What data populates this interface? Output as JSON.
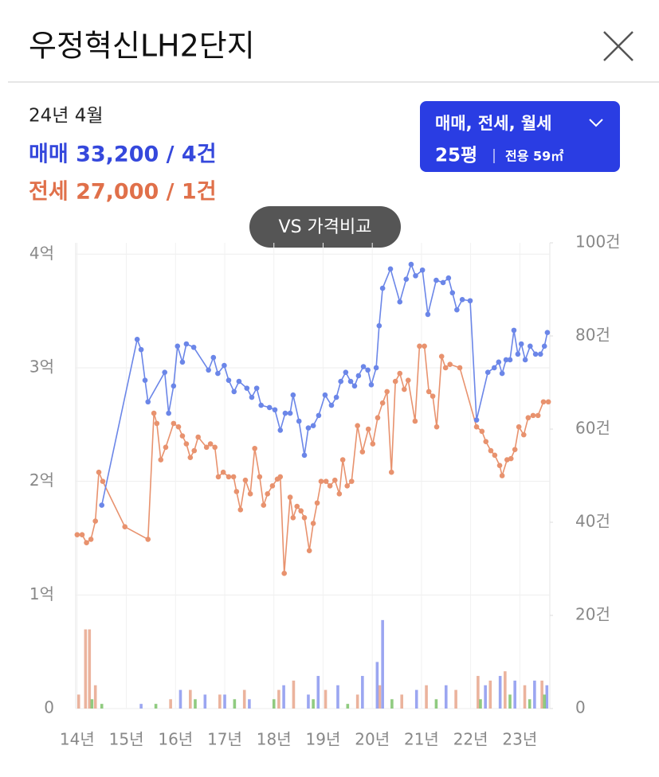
{
  "header": {
    "title": "우정혁신LH2단지",
    "date": "24년 4월",
    "sale": "매매 33,200 / 4건",
    "jeonse": "전세 27,000 / 1건",
    "filter": "매매, 전세, 월세",
    "size": "25평",
    "area": "전용 59㎡",
    "compare": "VS 가격비교"
  },
  "chart_data": {
    "type": "line",
    "xlim": [
      2013.97,
      2023.61
    ],
    "xticks": [
      {
        "value": 2014,
        "label": "14년"
      },
      {
        "value": 2015,
        "label": "15년"
      },
      {
        "value": 2016,
        "label": "16년"
      },
      {
        "value": 2017,
        "label": "17년"
      },
      {
        "value": 2018,
        "label": "18년"
      },
      {
        "value": 2019,
        "label": "19년"
      },
      {
        "value": 2020,
        "label": "20년"
      },
      {
        "value": 2021,
        "label": "21년"
      },
      {
        "value": 2022,
        "label": "22년"
      },
      {
        "value": 2023,
        "label": "23년"
      }
    ],
    "ylim": [
      0,
      4.1
    ],
    "yticks": [
      0,
      {
        "value": 1,
        "label": "1억"
      },
      {
        "value": 2,
        "label": "2억"
      },
      {
        "value": 3,
        "label": "3억"
      },
      {
        "value": 4,
        "label": "4억"
      }
    ],
    "y2lim": [
      0,
      100
    ],
    "y2ticks": [
      0,
      {
        "value": 20,
        "label": "20건"
      },
      {
        "value": 40,
        "label": "40건"
      },
      {
        "value": 60,
        "label": "60건"
      },
      {
        "value": 80,
        "label": "80건"
      },
      {
        "value": 100,
        "label": "100건"
      }
    ],
    "grid": true,
    "series": [
      {
        "kind": "bar",
        "axis": "y2",
        "color": "#e8a68c",
        "x": [
          2014.03,
          2014.17,
          2014.25,
          2014.37,
          2015.9,
          2016.3,
          2016.9,
          2017.4,
          2018.1,
          2018.4,
          2019.05,
          2019.7,
          2020.15,
          2020.6,
          2021.1,
          2021.7,
          2022.15,
          2022.4,
          2022.7,
          2023.1,
          2023.45
        ],
        "values": [
          3,
          17,
          17,
          5,
          2,
          4,
          3,
          4,
          4,
          6,
          4,
          3,
          5,
          3,
          5,
          4,
          7,
          6,
          8,
          5,
          6
        ]
      },
      {
        "kind": "bar",
        "axis": "y2",
        "color": "#8a97ee",
        "x": [
          2015.3,
          2016.1,
          2016.6,
          2017.0,
          2017.5,
          2018.2,
          2018.7,
          2018.9,
          2019.3,
          2019.8,
          2020.1,
          2020.21,
          2020.9,
          2021.5,
          2022.3,
          2022.6,
          2022.9,
          2023.3,
          2023.55
        ],
        "values": [
          1,
          4,
          3,
          3,
          2,
          5,
          3,
          7,
          5,
          7,
          10,
          19,
          4,
          5,
          5,
          7,
          6,
          6,
          5
        ]
      },
      {
        "kind": "bar",
        "axis": "y2",
        "color": "#7cc26a",
        "x": [
          2014.3,
          2014.5,
          2015.6,
          2016.4,
          2017.2,
          2018.0,
          2018.8,
          2019.5,
          2020.4,
          2021.3,
          2022.2,
          2022.8,
          2023.2,
          2023.5
        ],
        "values": [
          2,
          1,
          1,
          2,
          2,
          2,
          2,
          1,
          2,
          2,
          2,
          3,
          2,
          3
        ]
      },
      {
        "kind": "line",
        "color": "#e8926e",
        "x": [
          2014.0,
          2014.1,
          2014.19,
          2014.28,
          2014.37,
          2014.44,
          2014.52,
          2014.97,
          2015.44,
          2015.56,
          2015.62,
          2015.7,
          2015.8,
          2015.96,
          2016.06,
          2016.14,
          2016.22,
          2016.3,
          2016.38,
          2016.46,
          2016.63,
          2016.71,
          2016.8,
          2016.87,
          2016.97,
          2017.08,
          2017.18,
          2017.24,
          2017.32,
          2017.42,
          2017.52,
          2017.61,
          2017.71,
          2017.79,
          2017.87,
          2017.97,
          2018.07,
          2018.13,
          2018.21,
          2018.33,
          2018.39,
          2018.47,
          2018.55,
          2018.62,
          2018.72,
          2018.8,
          2018.88,
          2018.96,
          2019.06,
          2019.14,
          2019.24,
          2019.33,
          2019.4,
          2019.49,
          2019.58,
          2019.7,
          2019.8,
          2019.92,
          2020.01,
          2020.11,
          2020.21,
          2020.3,
          2020.39,
          2020.47,
          2020.56,
          2020.65,
          2020.73,
          2020.87,
          2020.96,
          2021.06,
          2021.15,
          2021.23,
          2021.31,
          2021.41,
          2021.49,
          2021.58,
          2021.78,
          2022.12,
          2022.23,
          2022.31,
          2022.41,
          2022.49,
          2022.59,
          2022.64,
          2022.74,
          2022.82,
          2022.9,
          2022.98,
          2023.08,
          2023.17,
          2023.27,
          2023.37,
          2023.48,
          2023.58
        ],
        "values": [
          1.53,
          1.53,
          1.46,
          1.49,
          1.65,
          2.08,
          2.0,
          1.6,
          1.49,
          2.6,
          2.51,
          2.19,
          2.3,
          2.51,
          2.48,
          2.4,
          2.33,
          2.21,
          2.27,
          2.39,
          2.3,
          2.33,
          2.3,
          2.04,
          2.08,
          2.04,
          2.04,
          1.91,
          1.75,
          2.01,
          1.89,
          2.29,
          2.04,
          1.79,
          1.89,
          1.96,
          2.02,
          2.04,
          1.19,
          1.86,
          1.68,
          1.78,
          1.74,
          1.68,
          1.39,
          1.63,
          1.81,
          2.0,
          2.0,
          1.96,
          2.01,
          1.89,
          2.19,
          1.96,
          2.0,
          2.49,
          2.26,
          2.46,
          2.33,
          2.56,
          2.69,
          2.79,
          2.08,
          2.88,
          2.95,
          2.81,
          2.89,
          2.53,
          3.19,
          3.19,
          2.79,
          2.75,
          2.48,
          3.1,
          3.0,
          3.03,
          3.0,
          2.48,
          2.44,
          2.35,
          2.27,
          2.23,
          2.14,
          2.05,
          2.19,
          2.2,
          2.28,
          2.48,
          2.41,
          2.56,
          2.58,
          2.58,
          2.7,
          2.7
        ]
      },
      {
        "kind": "line",
        "color": "#6b86e8",
        "x": [
          2014.5,
          2015.22,
          2015.3,
          2015.38,
          2015.44,
          2015.78,
          2015.86,
          2015.96,
          2016.04,
          2016.14,
          2016.22,
          2016.37,
          2016.67,
          2016.77,
          2016.86,
          2016.99,
          2017.08,
          2017.19,
          2017.29,
          2017.45,
          2017.55,
          2017.65,
          2017.74,
          2017.91,
          2018.02,
          2018.13,
          2018.23,
          2018.33,
          2018.39,
          2018.51,
          2018.62,
          2018.7,
          2018.8,
          2018.91,
          2019.04,
          2019.17,
          2019.27,
          2019.36,
          2019.46,
          2019.56,
          2019.64,
          2019.72,
          2019.82,
          2019.91,
          2019.98,
          2020.08,
          2020.14,
          2020.21,
          2020.37,
          2020.56,
          2020.69,
          2020.79,
          2020.88,
          2021.02,
          2021.13,
          2021.3,
          2021.44,
          2021.55,
          2021.63,
          2021.72,
          2021.83,
          2021.99,
          2022.12,
          2022.35,
          2022.48,
          2022.57,
          2022.64,
          2022.72,
          2022.8,
          2022.88,
          2022.96,
          2023.03,
          2023.11,
          2023.21,
          2023.32,
          2023.42,
          2023.5,
          2023.56
        ],
        "values": [
          1.79,
          3.25,
          3.16,
          2.89,
          2.7,
          2.96,
          2.6,
          2.84,
          3.19,
          3.05,
          3.21,
          3.18,
          2.98,
          3.09,
          2.95,
          3.02,
          2.89,
          2.79,
          2.88,
          2.82,
          2.74,
          2.82,
          2.67,
          2.65,
          2.63,
          2.45,
          2.6,
          2.6,
          2.76,
          2.53,
          2.23,
          2.47,
          2.49,
          2.58,
          2.76,
          2.67,
          2.74,
          2.88,
          2.96,
          2.88,
          2.84,
          2.93,
          3.01,
          2.98,
          2.85,
          3.0,
          3.37,
          3.7,
          3.87,
          3.58,
          3.78,
          3.91,
          3.81,
          3.86,
          3.47,
          3.77,
          3.75,
          3.79,
          3.66,
          3.51,
          3.6,
          3.59,
          2.54,
          2.96,
          3.0,
          3.05,
          2.95,
          3.07,
          3.07,
          3.33,
          3.12,
          3.21,
          3.07,
          3.19,
          3.12,
          3.12,
          3.19,
          3.31
        ]
      }
    ]
  }
}
